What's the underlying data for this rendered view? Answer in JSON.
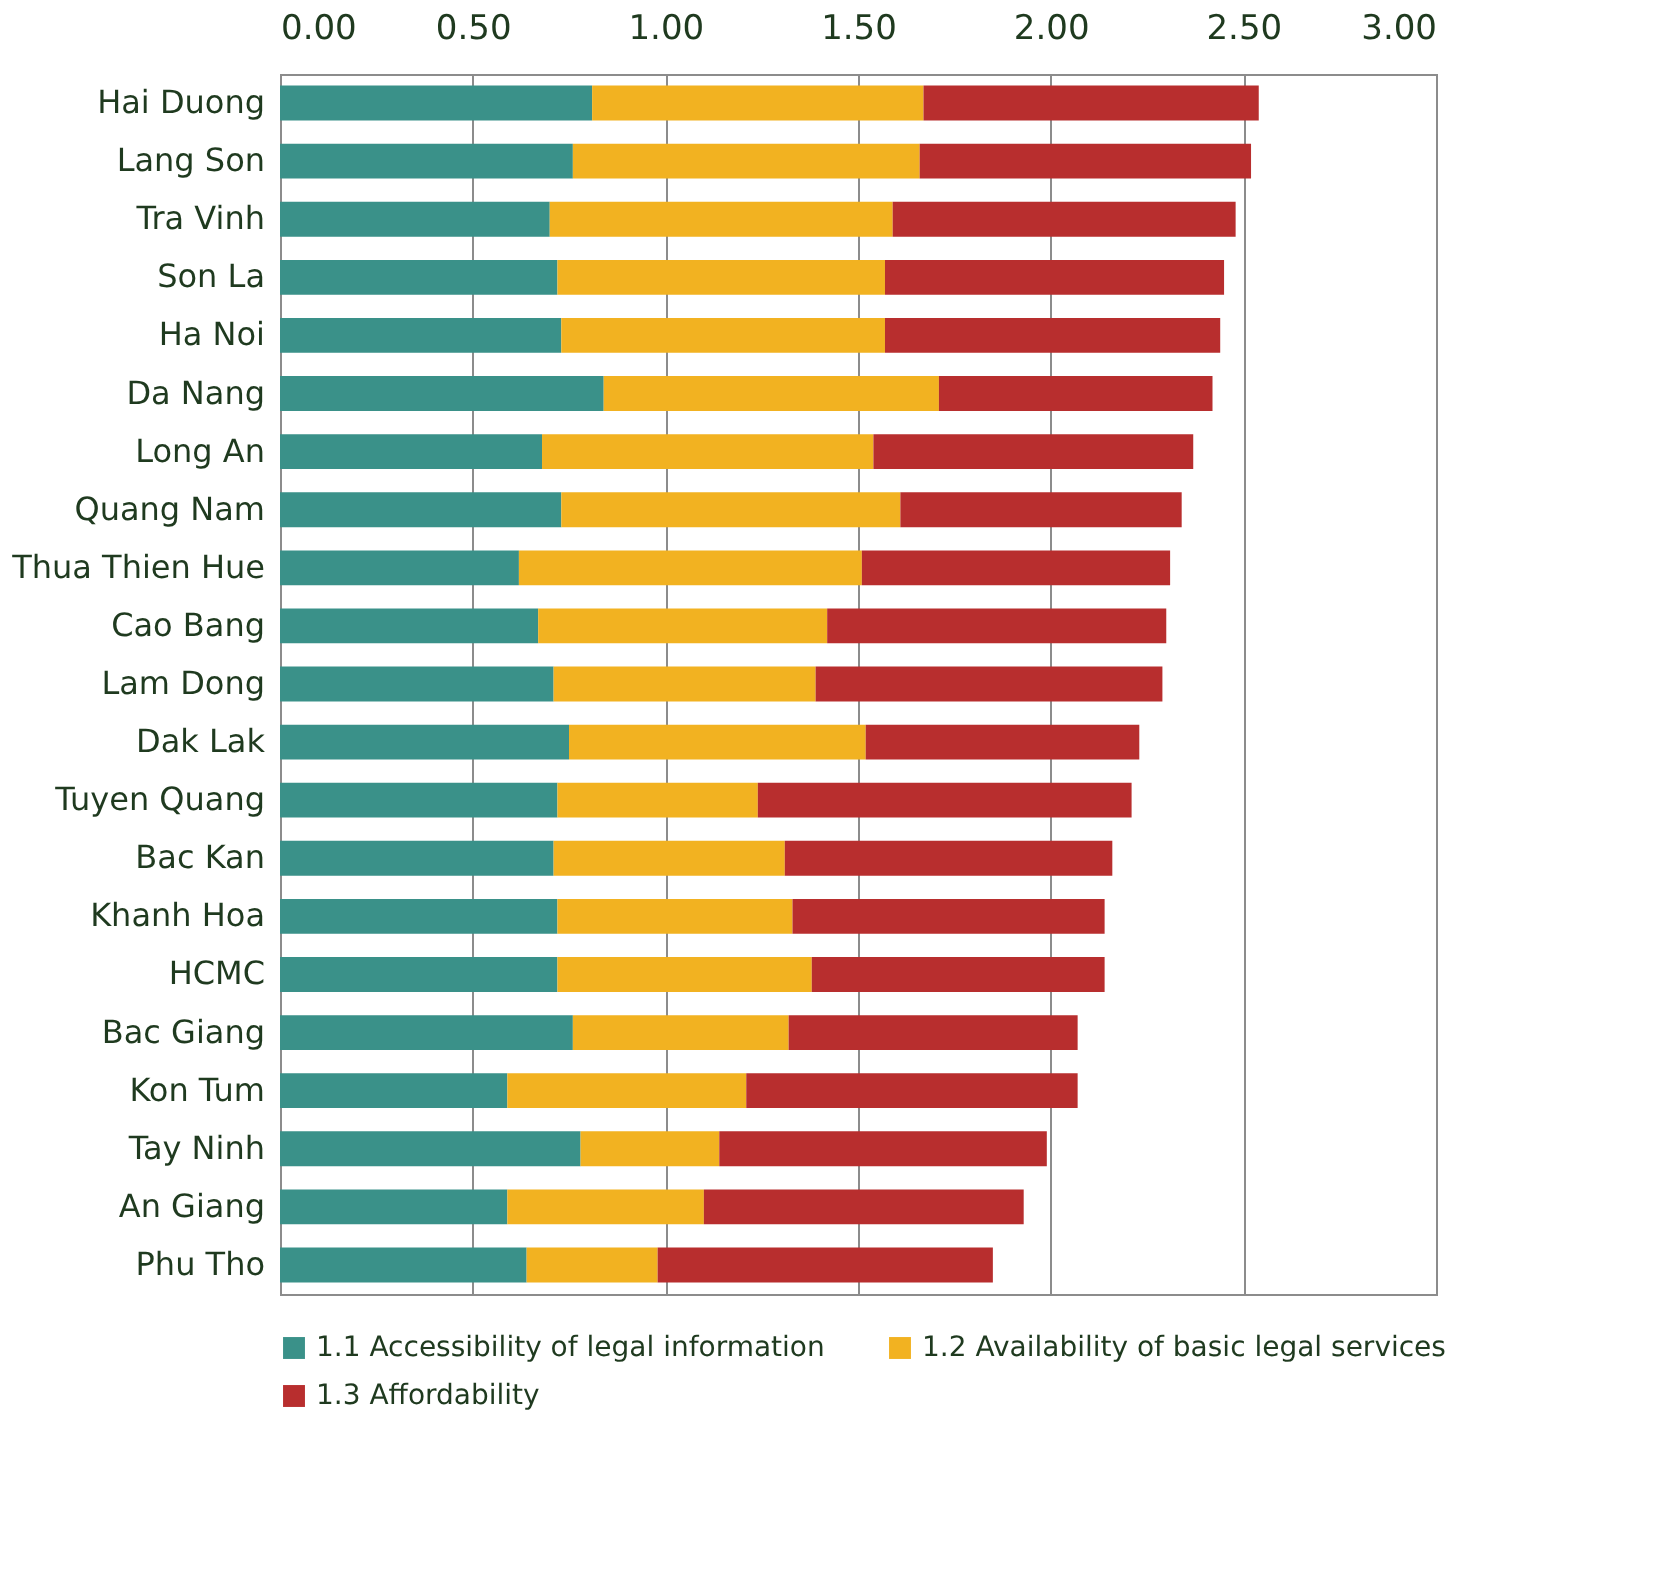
{
  "chart_data": {
    "type": "bar",
    "orientation": "horizontal",
    "stacked": true,
    "categories": [
      "Hai Duong",
      "Lang Son",
      "Tra Vinh",
      "Son La",
      "Ha Noi",
      "Da Nang",
      "Long An",
      "Quang Nam",
      "Thua Thien Hue",
      "Cao Bang",
      "Lam Dong",
      "Dak Lak",
      "Tuyen Quang",
      "Bac Kan",
      "Khanh Hoa",
      "HCMC",
      "Bac Giang",
      "Kon Tum",
      "Tay Ninh",
      "An Giang",
      "Phu Tho"
    ],
    "series": [
      {
        "name": "1.1 Accessibility of legal information",
        "color": "#3a9189",
        "values": [
          0.81,
          0.76,
          0.7,
          0.72,
          0.73,
          0.84,
          0.68,
          0.73,
          0.62,
          0.67,
          0.71,
          0.75,
          0.72,
          0.71,
          0.72,
          0.72,
          0.76,
          0.59,
          0.78,
          0.59,
          0.64
        ]
      },
      {
        "name": "1.2 Availability  of basic legal services",
        "color": "#f2b221",
        "values": [
          0.86,
          0.9,
          0.89,
          0.85,
          0.84,
          0.87,
          0.86,
          0.88,
          0.89,
          0.75,
          0.68,
          0.77,
          0.52,
          0.6,
          0.61,
          0.66,
          0.56,
          0.62,
          0.36,
          0.51,
          0.34
        ]
      },
      {
        "name": "1.3 Affordability",
        "color": "#b82e2e",
        "values": [
          0.87,
          0.86,
          0.89,
          0.88,
          0.87,
          0.71,
          0.83,
          0.73,
          0.8,
          0.88,
          0.9,
          0.71,
          0.97,
          0.85,
          0.81,
          0.76,
          0.75,
          0.86,
          0.85,
          0.83,
          0.87
        ]
      }
    ],
    "xlim": [
      0,
      3
    ],
    "xticks": [
      {
        "value": 0,
        "label": "0.00"
      },
      {
        "value": 0.5,
        "label": "0.50"
      },
      {
        "value": 1,
        "label": "1.00"
      },
      {
        "value": 1.5,
        "label": "1.50"
      },
      {
        "value": 2,
        "label": "2.00"
      },
      {
        "value": 2.5,
        "label": "2.50"
      },
      {
        "value": 3,
        "label": "3.00"
      }
    ],
    "grid": "x",
    "legend": "bottom"
  }
}
